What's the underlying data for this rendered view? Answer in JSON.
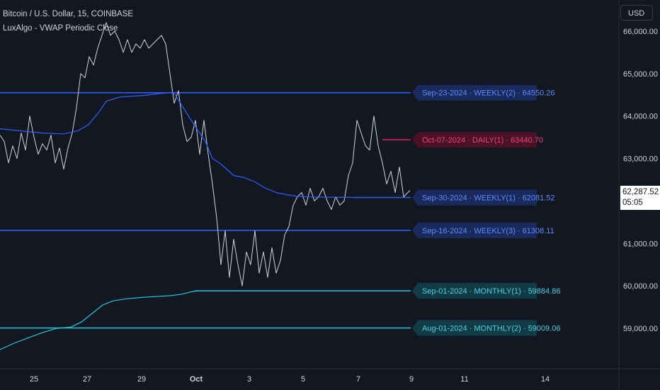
{
  "header": {
    "symbol_title": "Bitcoin / U.S. Dollar, 15, COINBASE",
    "indicator_name": "LuxAlgo - VWAP Periodic Close"
  },
  "axis": {
    "currency_label": "USD",
    "current_price": "62,287.52",
    "countdown": "05:05"
  },
  "colors": {
    "background": "#131722",
    "weekly": "#2962ff",
    "weekly_label_bg": "#1a2a5c",
    "weekly_text": "#5b8cff",
    "daily": "#e91e63",
    "daily_label_bg": "#4a1226",
    "daily_text": "#f0427b",
    "monthly": "#26c6da",
    "monthly_label_bg": "#123c45",
    "monthly_text": "#4dd0e1",
    "price": "#d1d4dc"
  },
  "chart_data": {
    "type": "line",
    "x_ticks": [
      "25",
      "27",
      "29",
      "Oct",
      "3",
      "5",
      "7",
      "9",
      "11",
      "14"
    ],
    "y_ticks": [
      "59,000.00",
      "60,000.00",
      "61,000.00",
      "62,000.00",
      "63,000.00",
      "64,000.00",
      "65,000.00",
      "66,000.00"
    ],
    "y_tick_values": [
      59000,
      60000,
      61000,
      62000,
      63000,
      64000,
      65000,
      66000
    ],
    "ylim": [
      58300,
      66650
    ],
    "levels": [
      {
        "label": "Sep-23-2024 · WEEKLY(2) · 64550.26",
        "value": 64550.26,
        "kind": "weekly"
      },
      {
        "label": "Oct-07-2024 · DAILY(1) · 63440.70",
        "value": 63440.7,
        "kind": "daily"
      },
      {
        "label": "Sep-30-2024 · WEEKLY(1) · 62081.52",
        "value": 62081.52,
        "kind": "weekly"
      },
      {
        "label": "Sep-16-2024 · WEEKLY(3) · 61308.11",
        "value": 61308.11,
        "kind": "weekly"
      },
      {
        "label": "Sep-01-2024 · MONTHLY(1) · 59884.86",
        "value": 59884.86,
        "kind": "monthly"
      },
      {
        "label": "Aug-01-2024 · MONTHLY(2) · 59009.06",
        "value": 59009.06,
        "kind": "monthly"
      }
    ],
    "series": [
      {
        "kind": "price",
        "points": [
          [
            0,
            63550
          ],
          [
            6,
            63400
          ],
          [
            12,
            62900
          ],
          [
            18,
            63300
          ],
          [
            24,
            63000
          ],
          [
            30,
            63600
          ],
          [
            36,
            63200
          ],
          [
            42,
            64000
          ],
          [
            48,
            63500
          ],
          [
            54,
            63100
          ],
          [
            60,
            63350
          ],
          [
            66,
            63200
          ],
          [
            72,
            63550
          ],
          [
            78,
            62900
          ],
          [
            84,
            63250
          ],
          [
            90,
            62750
          ],
          [
            96,
            63250
          ],
          [
            102,
            63600
          ],
          [
            108,
            64200
          ],
          [
            114,
            65000
          ],
          [
            120,
            64900
          ],
          [
            126,
            65400
          ],
          [
            132,
            65200
          ],
          [
            138,
            65600
          ],
          [
            144,
            65900
          ],
          [
            150,
            66200
          ],
          [
            156,
            65900
          ],
          [
            162,
            66000
          ],
          [
            168,
            65800
          ],
          [
            174,
            65500
          ],
          [
            180,
            65800
          ],
          [
            186,
            65500
          ],
          [
            192,
            65700
          ],
          [
            198,
            65600
          ],
          [
            204,
            65800
          ],
          [
            210,
            65600
          ],
          [
            216,
            65700
          ],
          [
            222,
            65800
          ],
          [
            228,
            65900
          ],
          [
            234,
            65700
          ],
          [
            240,
            65000
          ],
          [
            246,
            64300
          ],
          [
            252,
            64600
          ],
          [
            258,
            63800
          ],
          [
            264,
            63400
          ],
          [
            270,
            63500
          ],
          [
            276,
            63900
          ],
          [
            282,
            63100
          ],
          [
            288,
            63900
          ],
          [
            294,
            63100
          ],
          [
            300,
            62400
          ],
          [
            306,
            61600
          ],
          [
            312,
            60500
          ],
          [
            318,
            61300
          ],
          [
            324,
            60200
          ],
          [
            330,
            61100
          ],
          [
            336,
            60500
          ],
          [
            342,
            60000
          ],
          [
            348,
            60800
          ],
          [
            354,
            60500
          ],
          [
            360,
            61300
          ],
          [
            366,
            60300
          ],
          [
            372,
            60800
          ],
          [
            378,
            60200
          ],
          [
            384,
            60900
          ],
          [
            390,
            60300
          ],
          [
            396,
            60600
          ],
          [
            402,
            61200
          ],
          [
            408,
            61400
          ],
          [
            414,
            61900
          ],
          [
            420,
            62100
          ],
          [
            426,
            62200
          ],
          [
            432,
            61900
          ],
          [
            438,
            62300
          ],
          [
            444,
            62000
          ],
          [
            450,
            62100
          ],
          [
            456,
            62300
          ],
          [
            462,
            62000
          ],
          [
            468,
            61800
          ],
          [
            474,
            62100
          ],
          [
            480,
            61900
          ],
          [
            486,
            62000
          ],
          [
            492,
            62600
          ],
          [
            498,
            62900
          ],
          [
            504,
            63900
          ],
          [
            510,
            63600
          ],
          [
            516,
            63300
          ],
          [
            522,
            63200
          ],
          [
            528,
            64000
          ],
          [
            534,
            63300
          ],
          [
            540,
            62900
          ],
          [
            546,
            62400
          ],
          [
            552,
            62700
          ],
          [
            558,
            62200
          ],
          [
            564,
            62800
          ],
          [
            570,
            62100
          ],
          [
            576,
            62200
          ],
          [
            579,
            62250
          ]
        ]
      },
      {
        "kind": "weekly",
        "points": [
          [
            0,
            63700
          ],
          [
            30,
            63650
          ],
          [
            60,
            63600
          ],
          [
            90,
            63580
          ],
          [
            110,
            63650
          ],
          [
            125,
            63800
          ],
          [
            140,
            64100
          ],
          [
            150,
            64350
          ],
          [
            170,
            64450
          ],
          [
            200,
            64480
          ],
          [
            220,
            64520
          ],
          [
            245,
            64560
          ],
          [
            255,
            64300
          ],
          [
            270,
            63900
          ],
          [
            290,
            63400
          ],
          [
            300,
            63000
          ],
          [
            310,
            62900
          ],
          [
            320,
            62750
          ],
          [
            330,
            62600
          ],
          [
            345,
            62550
          ],
          [
            360,
            62450
          ],
          [
            375,
            62300
          ],
          [
            390,
            62200
          ],
          [
            405,
            62150
          ],
          [
            420,
            62110
          ],
          [
            440,
            62095
          ],
          [
            470,
            62090
          ],
          [
            500,
            62085
          ]
        ]
      },
      {
        "kind": "monthly",
        "points": [
          [
            0,
            58500
          ],
          [
            20,
            58650
          ],
          [
            40,
            58780
          ],
          [
            60,
            58900
          ],
          [
            80,
            59000
          ],
          [
            100,
            59030
          ],
          [
            115,
            59150
          ],
          [
            130,
            59350
          ],
          [
            145,
            59550
          ],
          [
            160,
            59650
          ],
          [
            180,
            59700
          ],
          [
            200,
            59730
          ],
          [
            220,
            59750
          ],
          [
            240,
            59770
          ],
          [
            255,
            59800
          ],
          [
            270,
            59860
          ],
          [
            278,
            59885
          ]
        ]
      }
    ]
  }
}
